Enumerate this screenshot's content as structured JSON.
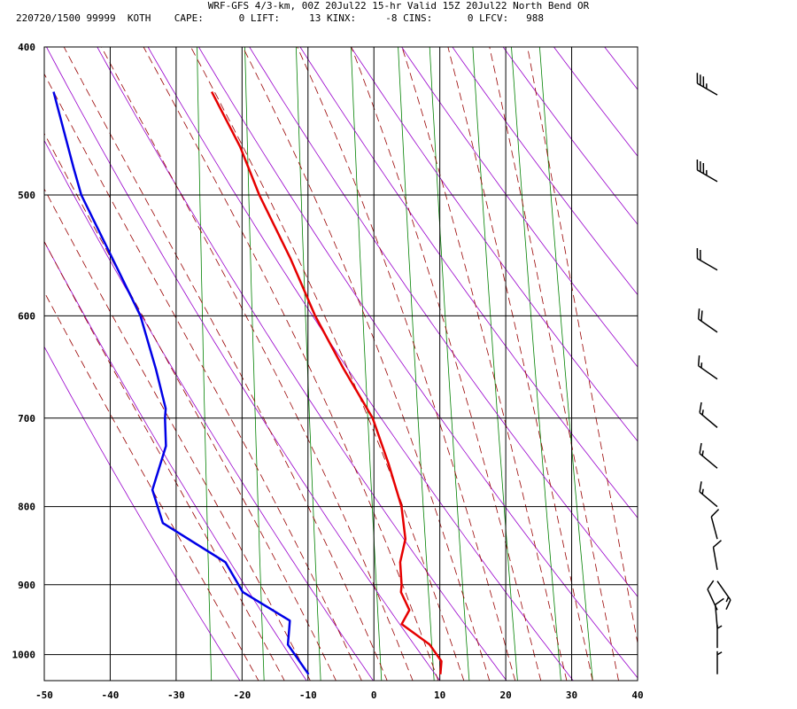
{
  "header": {
    "line1": "WRF-GFS 4/3-km, 00Z 20Jul22 15-hr Valid 15Z 20Jul22 North Bend OR",
    "line2": "220720/1500 99999  KOTH    CAPE:      0 LIFT:     13 KINX:     -8 CINS:      0 LFCV:   988"
  },
  "colors": {
    "temperature": "#e60000",
    "dewpoint": "#0000e6",
    "dry_adiabat": "#9900cc",
    "moist_adiabat": "#990000",
    "mixing_ratio": "#008000",
    "grid": "#000000",
    "wind_barb": "#000000"
  },
  "chart_data": {
    "type": "skew-t log-p sounding",
    "x_axis": {
      "ticks": [
        -50,
        -40,
        -30,
        -20,
        -10,
        0,
        10,
        20,
        30,
        40
      ],
      "range": [
        -50,
        40
      ]
    },
    "y_axis": {
      "ticks": [
        400,
        500,
        600,
        700,
        800,
        900,
        1000
      ],
      "range": [
        400,
        1040
      ],
      "scale": "log"
    },
    "series": [
      {
        "key": "temperature",
        "points": [
          [
            428,
            -32
          ],
          [
            465,
            -27
          ],
          [
            500,
            -23.5
          ],
          [
            550,
            -18
          ],
          [
            600,
            -13.5
          ],
          [
            650,
            -8.5
          ],
          [
            700,
            -3.5
          ],
          [
            750,
            -0.5
          ],
          [
            800,
            2
          ],
          [
            840,
            3
          ],
          [
            870,
            2.5
          ],
          [
            900,
            3
          ],
          [
            910,
            3
          ],
          [
            935,
            4.5
          ],
          [
            955,
            3.5
          ],
          [
            985,
            8
          ],
          [
            1010,
            10
          ],
          [
            1030,
            10
          ]
        ]
      },
      {
        "key": "dewpoint",
        "points": [
          [
            428,
            -56
          ],
          [
            480,
            -52
          ],
          [
            500,
            -50.5
          ],
          [
            550,
            -45
          ],
          [
            600,
            -40
          ],
          [
            650,
            -37
          ],
          [
            690,
            -35
          ],
          [
            700,
            -35
          ],
          [
            730,
            -34.5
          ],
          [
            780,
            -36
          ],
          [
            820,
            -34
          ],
          [
            870,
            -24
          ],
          [
            910,
            -21
          ],
          [
            950,
            -13.5
          ],
          [
            960,
            -13.5
          ],
          [
            985,
            -13.5
          ],
          [
            1030,
            -10
          ]
        ]
      }
    ],
    "wind_barbs": [
      {
        "p": 430,
        "speed_kt": 35,
        "direction_deg": 300
      },
      {
        "p": 490,
        "speed_kt": 35,
        "direction_deg": 300
      },
      {
        "p": 560,
        "speed_kt": 20,
        "direction_deg": 300
      },
      {
        "p": 615,
        "speed_kt": 20,
        "direction_deg": 305
      },
      {
        "p": 660,
        "speed_kt": 15,
        "direction_deg": 305
      },
      {
        "p": 710,
        "speed_kt": 15,
        "direction_deg": 310
      },
      {
        "p": 755,
        "speed_kt": 15,
        "direction_deg": 310
      },
      {
        "p": 800,
        "speed_kt": 15,
        "direction_deg": 310
      },
      {
        "p": 840,
        "speed_kt": 10,
        "direction_deg": 345
      },
      {
        "p": 880,
        "speed_kt": 10,
        "direction_deg": 350
      },
      {
        "p": 895,
        "speed_kt": 15,
        "direction_deg": 145
      },
      {
        "p": 935,
        "speed_kt": 10,
        "direction_deg": 335
      },
      {
        "p": 960,
        "speed_kt": 10,
        "direction_deg": 355
      },
      {
        "p": 990,
        "speed_kt": 5,
        "direction_deg": 0
      },
      {
        "p": 1030,
        "speed_kt": 5,
        "direction_deg": 0
      }
    ]
  }
}
